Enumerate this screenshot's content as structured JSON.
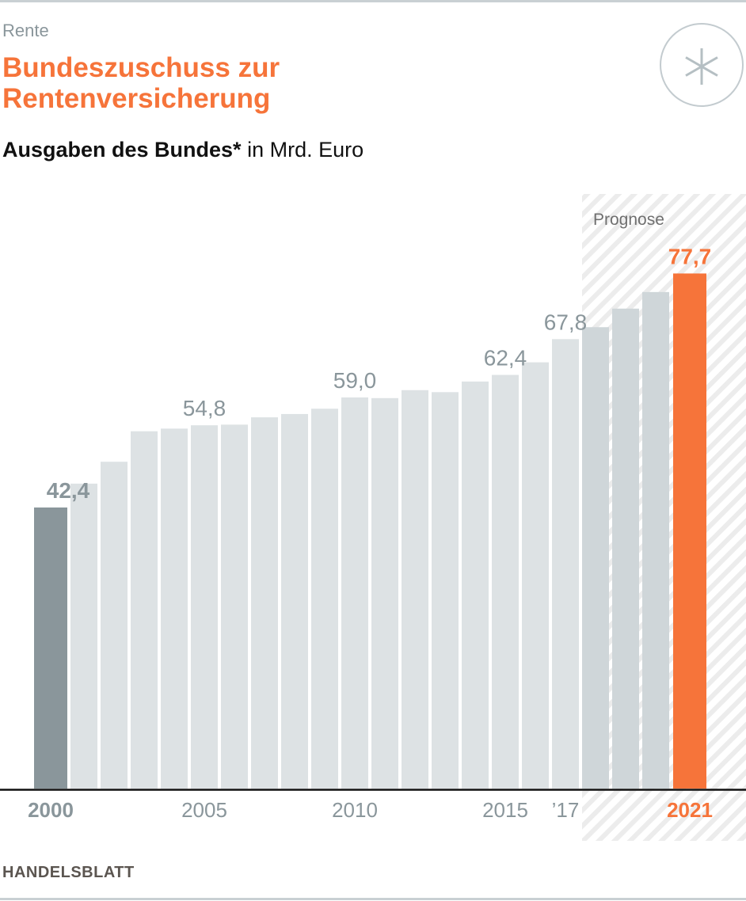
{
  "header": {
    "kicker": "Rente",
    "title_line1": "Bundeszuschuss zur",
    "title_line2": "Rentenversicherung",
    "subtitle_bold": "Ausgaben des Bundes*",
    "subtitle_rest": " in Mrd. Euro",
    "badge_icon": "asterisk-icon"
  },
  "footer": {
    "source": "HANDELSBLATT"
  },
  "colors": {
    "accent": "#f6743a",
    "first_bar": "#8a969b",
    "bar": "#dde2e4",
    "forecast_bar": "#cfd6d9",
    "label": "#8a969b",
    "axis": "#111111",
    "hatch": "#ececec"
  },
  "chart_data": {
    "type": "bar",
    "title": "Bundeszuschuss zur Rentenversicherung",
    "subtitle": "Ausgaben des Bundes* in Mrd. Euro",
    "xlabel": "",
    "ylabel": "Mrd. Euro",
    "ylim": [
      0,
      85
    ],
    "grid": false,
    "categories": [
      "2000",
      "2001",
      "2002",
      "2003",
      "2004",
      "2005",
      "2006",
      "2007",
      "2008",
      "2009",
      "2010",
      "2011",
      "2012",
      "2013",
      "2014",
      "2015",
      "2016",
      "2017",
      "2018",
      "2019",
      "2020",
      "2021"
    ],
    "values": [
      42.4,
      46.0,
      49.3,
      53.9,
      54.3,
      54.8,
      54.9,
      56.0,
      56.5,
      57.3,
      59.0,
      58.9,
      60.1,
      59.8,
      61.4,
      62.4,
      64.3,
      67.8,
      69.6,
      72.4,
      74.9,
      77.7
    ],
    "forecast_from": "2018",
    "forecast_label": "Prognose",
    "data_labels": [
      {
        "category": "2000",
        "text": "42,4"
      },
      {
        "category": "2005",
        "text": "54,8"
      },
      {
        "category": "2010",
        "text": "59,0"
      },
      {
        "category": "2015",
        "text": "62,4"
      },
      {
        "category": "2017",
        "text": "67,8"
      },
      {
        "category": "2021",
        "text": "77,7"
      }
    ],
    "tick_labels": [
      {
        "category": "2000",
        "text": "2000"
      },
      {
        "category": "2005",
        "text": "2005"
      },
      {
        "category": "2010",
        "text": "2010"
      },
      {
        "category": "2015",
        "text": "2015"
      },
      {
        "category": "2017",
        "text": "’17"
      },
      {
        "category": "2021",
        "text": "2021"
      }
    ],
    "highlight": {
      "first": "2000",
      "last": "2021"
    }
  }
}
